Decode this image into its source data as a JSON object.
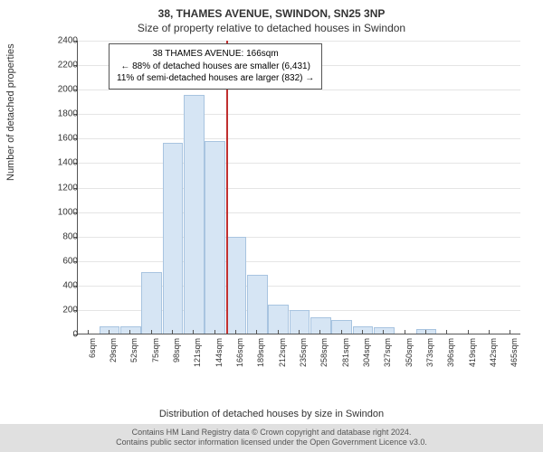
{
  "title_main": "38, THAMES AVENUE, SWINDON, SN25 3NP",
  "title_sub": "Size of property relative to detached houses in Swindon",
  "legend": {
    "line1": "38 THAMES AVENUE: 166sqm",
    "line2": "← 88% of detached houses are smaller (6,431)",
    "line3": "11% of semi-detached houses are larger (832) →"
  },
  "chart": {
    "type": "histogram",
    "ylabel": "Number of detached properties",
    "xlabel": "Distribution of detached houses by size in Swindon",
    "ylim": [
      0,
      2400
    ],
    "ytick_step": 200,
    "xtick_labels": [
      "6sqm",
      "29sqm",
      "52sqm",
      "75sqm",
      "98sqm",
      "121sqm",
      "144sqm",
      "166sqm",
      "189sqm",
      "212sqm",
      "235sqm",
      "258sqm",
      "281sqm",
      "304sqm",
      "327sqm",
      "350sqm",
      "373sqm",
      "396sqm",
      "419sqm",
      "442sqm",
      "465sqm"
    ],
    "bar_values": [
      0,
      60,
      60,
      500,
      1560,
      1950,
      1570,
      790,
      480,
      240,
      190,
      130,
      110,
      60,
      50,
      0,
      40,
      0,
      0,
      0,
      0
    ],
    "bar_fill": "#d6e5f4",
    "bar_stroke": "#a8c4e0",
    "highlight_index": 7,
    "highlight_color": "#c03030",
    "grid_color": "#e5e5e5",
    "axis_color": "#555555",
    "label_fontsize": 11,
    "tick_fontsize": 10,
    "background_color": "#ffffff"
  },
  "footer": {
    "line1": "Contains HM Land Registry data © Crown copyright and database right 2024.",
    "line2": "Contains public sector information licensed under the Open Government Licence v3.0."
  }
}
